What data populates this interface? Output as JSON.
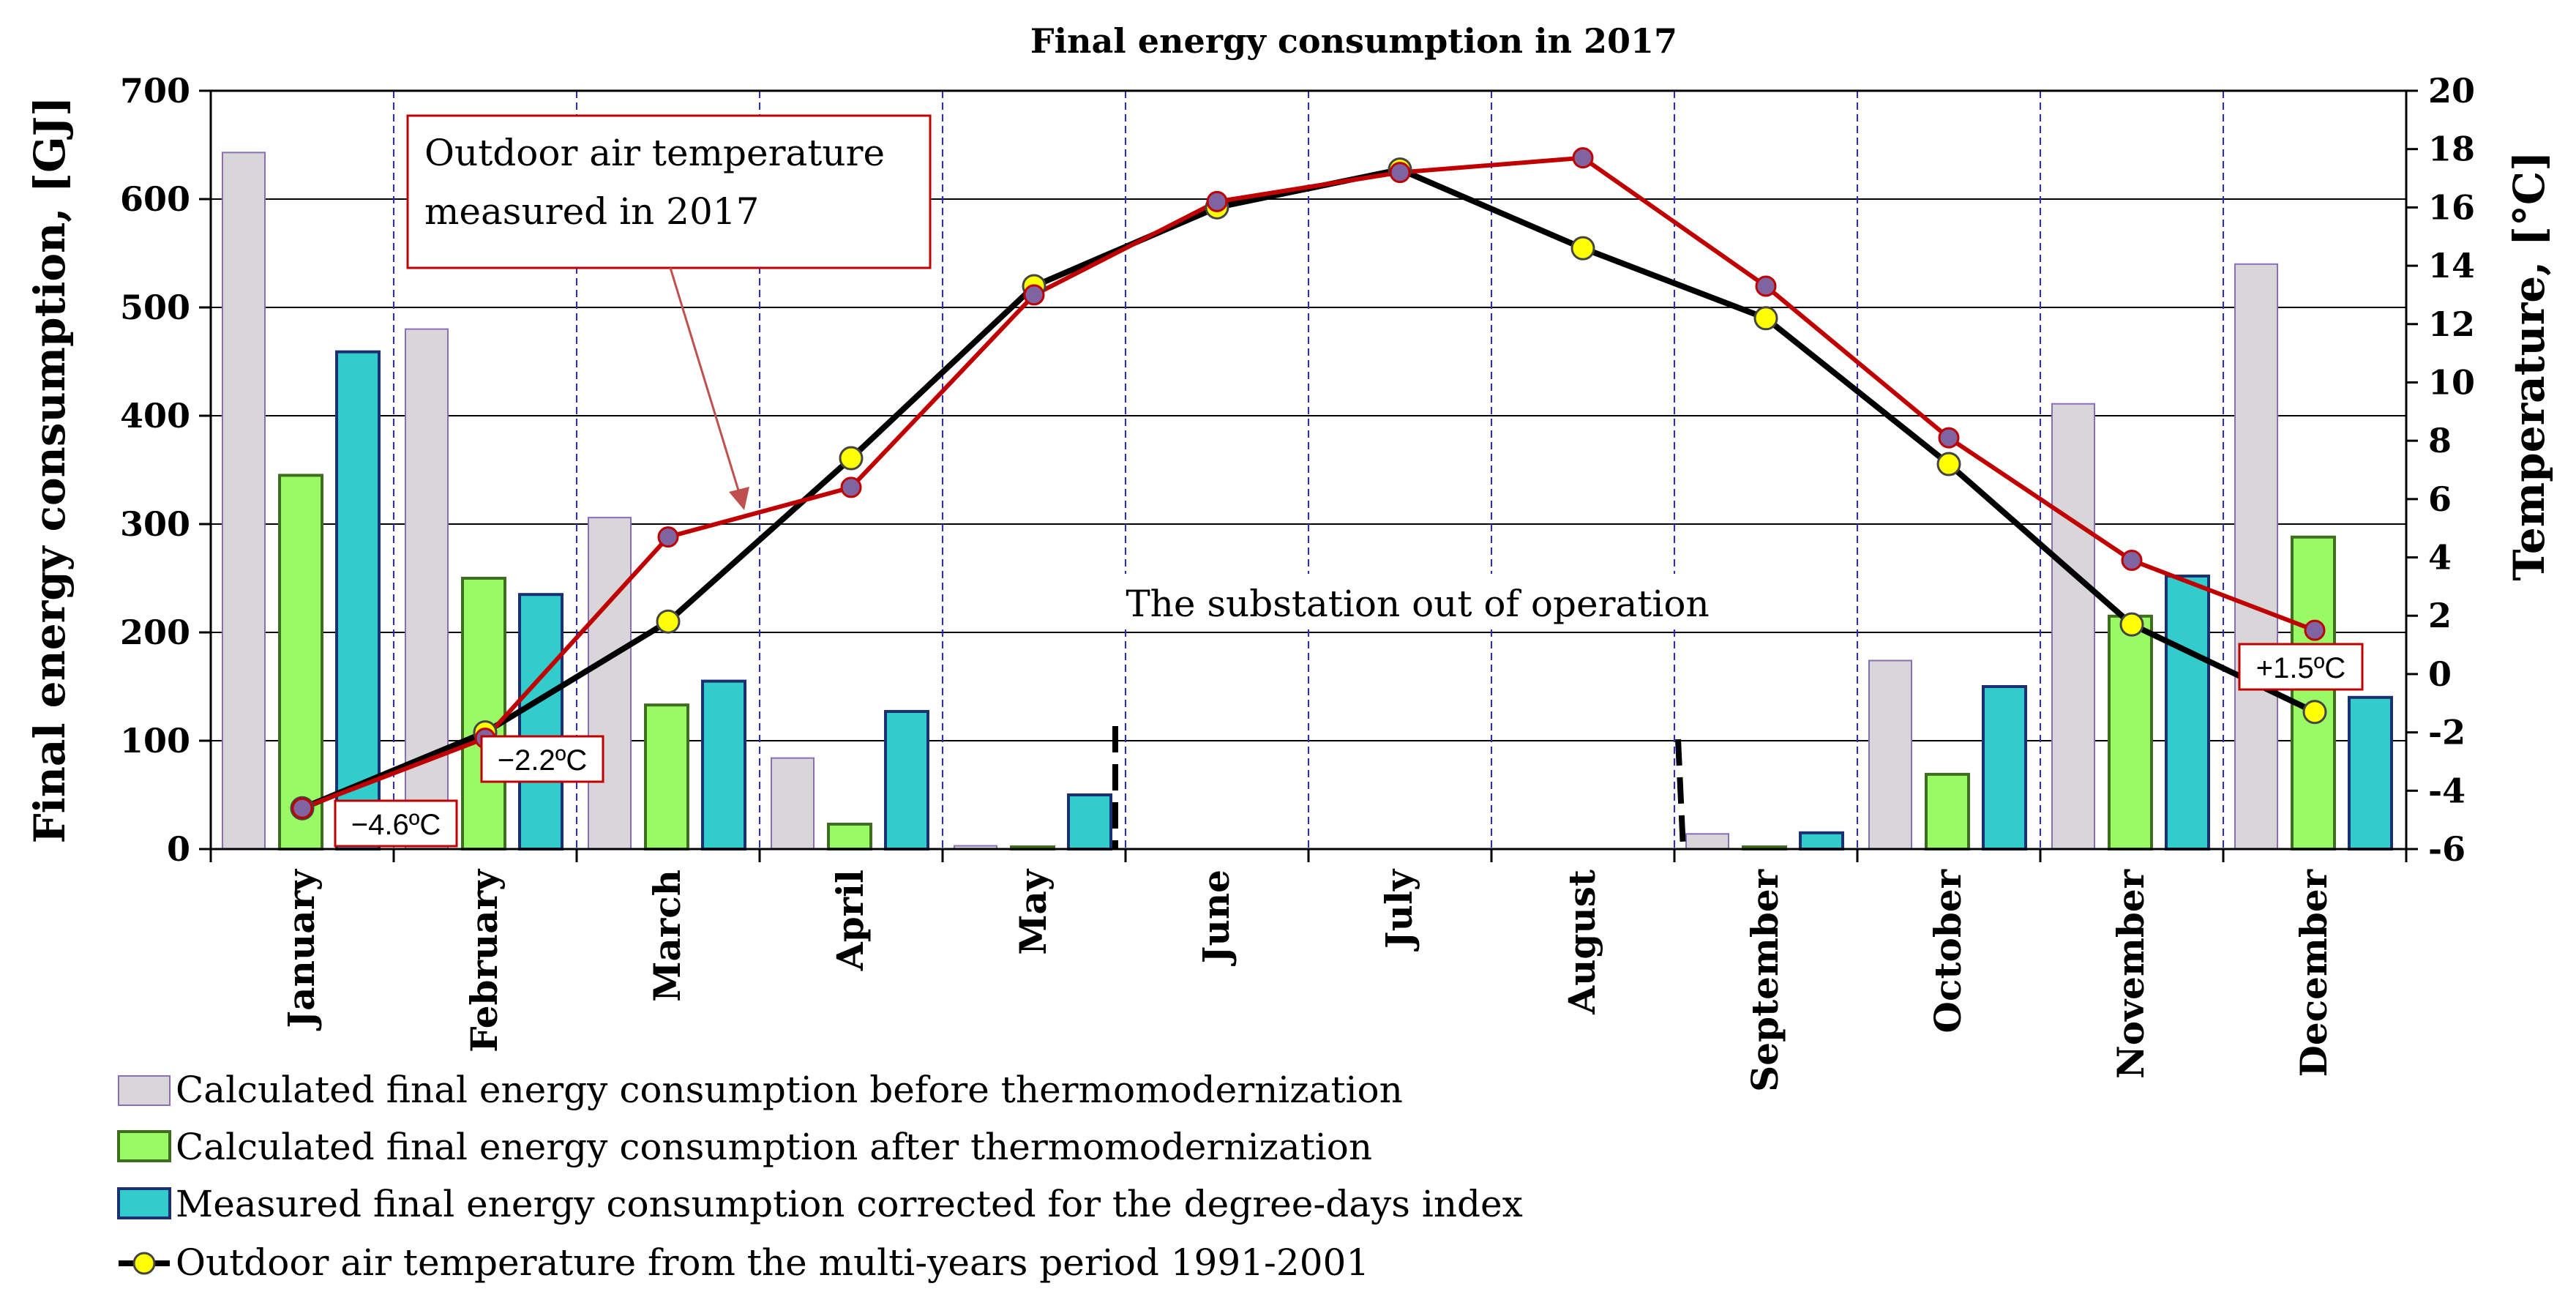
{
  "chart_data": {
    "type": "bar",
    "title": "Final energy consumption in 2017",
    "ylabel_left": "Final energy consumption,   [GJ]",
    "ylabel_right": "Temperature, [°C]",
    "ylim_left": [
      0,
      700
    ],
    "ylim_right": [
      -6,
      20
    ],
    "left_ticks": [
      "0",
      "100",
      "200",
      "300",
      "400",
      "500",
      "600",
      "700"
    ],
    "right_ticks": [
      "-6",
      "-4",
      "-2",
      "0",
      "2",
      "4",
      "6",
      "8",
      "10",
      "12",
      "14",
      "16",
      "18",
      "20"
    ],
    "categories": [
      "January",
      "February",
      "March",
      "April",
      "May",
      "June",
      "July",
      "August",
      "September",
      "October",
      "November",
      "December"
    ],
    "series": [
      {
        "name": "Calculated final energy consumption before thermomodernization",
        "type": "bar",
        "axis": "left",
        "color": "#d9d6da",
        "edge": "#8a6fb8",
        "values": [
          643,
          480,
          306,
          84,
          3,
          0,
          0,
          0,
          14,
          174,
          411,
          540
        ]
      },
      {
        "name": "Calculated final energy consumption after thermomodernization",
        "type": "bar",
        "axis": "left",
        "color": "#99fa66",
        "edge": "#3f6e21",
        "values": [
          345,
          250,
          133,
          23,
          2,
          0,
          0,
          0,
          2,
          69,
          215,
          288
        ]
      },
      {
        "name": "Measured final energy consumption corrected for the degree-days index",
        "type": "bar",
        "axis": "left",
        "color": "#33cccc",
        "edge": "#1a3070",
        "values": [
          459,
          235,
          155,
          127,
          50,
          0,
          0,
          0,
          15,
          150,
          252,
          140
        ]
      },
      {
        "name": "Outdoor air temperature from the multi-years period 1991-2001",
        "type": "line",
        "axis": "right",
        "color": "#000000",
        "marker": "#ffff00",
        "values": [
          -4.6,
          -2.0,
          1.8,
          7.4,
          13.3,
          16.0,
          17.3,
          14.6,
          12.2,
          7.2,
          1.7,
          -1.3
        ]
      },
      {
        "name": "Outdoor air temperature measured in 2017",
        "type": "line",
        "axis": "right",
        "color": "#c00000",
        "marker": "#8064a2",
        "values": [
          -4.6,
          -2.2,
          4.7,
          6.4,
          13.0,
          16.2,
          17.2,
          17.7,
          13.3,
          8.1,
          3.9,
          1.5
        ]
      }
    ],
    "annotations": {
      "outdoor_measured": [
        "Outdoor air temperature",
        "measured in 2017"
      ],
      "substation": "The substation out of operation",
      "jan_temp": "−4.6ºC",
      "feb_temp": "−2.2ºC",
      "dec_temp": "+1.5ºC"
    }
  },
  "legend": [
    {
      "label": "Calculated final energy consumption before thermomodernization"
    },
    {
      "label": "Calculated final energy consumption after thermomodernization"
    },
    {
      "label": "Measured final energy consumption corrected for the degree-days index"
    },
    {
      "label": "Outdoor air temperature from the multi-years period 1991-2001"
    }
  ]
}
